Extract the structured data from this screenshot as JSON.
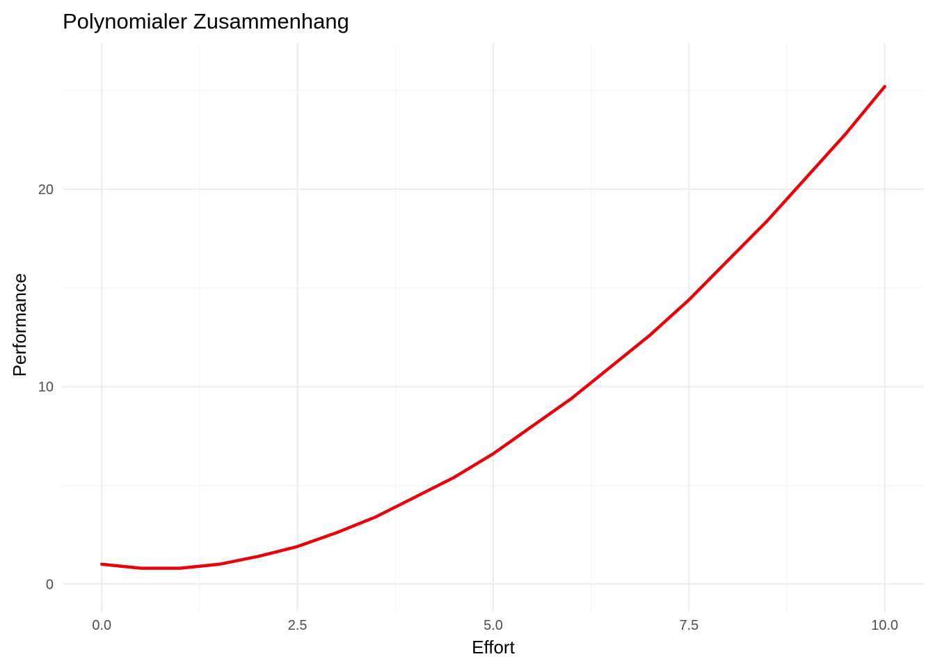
{
  "chart_data": {
    "type": "line",
    "title": "Polynomialer Zusammenhang",
    "xlabel": "Effort",
    "ylabel": "Performance",
    "xlim": [
      -0.5,
      10.5
    ],
    "ylim": [
      -1.4,
      27.4
    ],
    "x_ticks": [
      0.0,
      2.5,
      5.0,
      7.5,
      10.0
    ],
    "x_tick_labels": [
      "0.0",
      "2.5",
      "5.0",
      "7.5",
      "10.0"
    ],
    "y_ticks": [
      0,
      10,
      20
    ],
    "y_tick_labels": [
      "0",
      "10",
      "20"
    ],
    "grid": true,
    "legend": "none",
    "series": [
      {
        "color": "#e8000b",
        "x": [
          0,
          0.5,
          1,
          1.5,
          2,
          2.5,
          3,
          3.5,
          4,
          4.5,
          5,
          5.5,
          6,
          6.5,
          7,
          7.5,
          8,
          8.5,
          9,
          9.5,
          10
        ],
        "y": [
          1.0,
          0.8,
          0.8,
          1.0,
          1.4,
          1.9,
          2.6,
          3.4,
          4.4,
          5.4,
          6.6,
          8.0,
          9.4,
          11.0,
          12.6,
          14.4,
          16.4,
          18.4,
          20.6,
          22.8,
          25.2
        ]
      }
    ]
  }
}
